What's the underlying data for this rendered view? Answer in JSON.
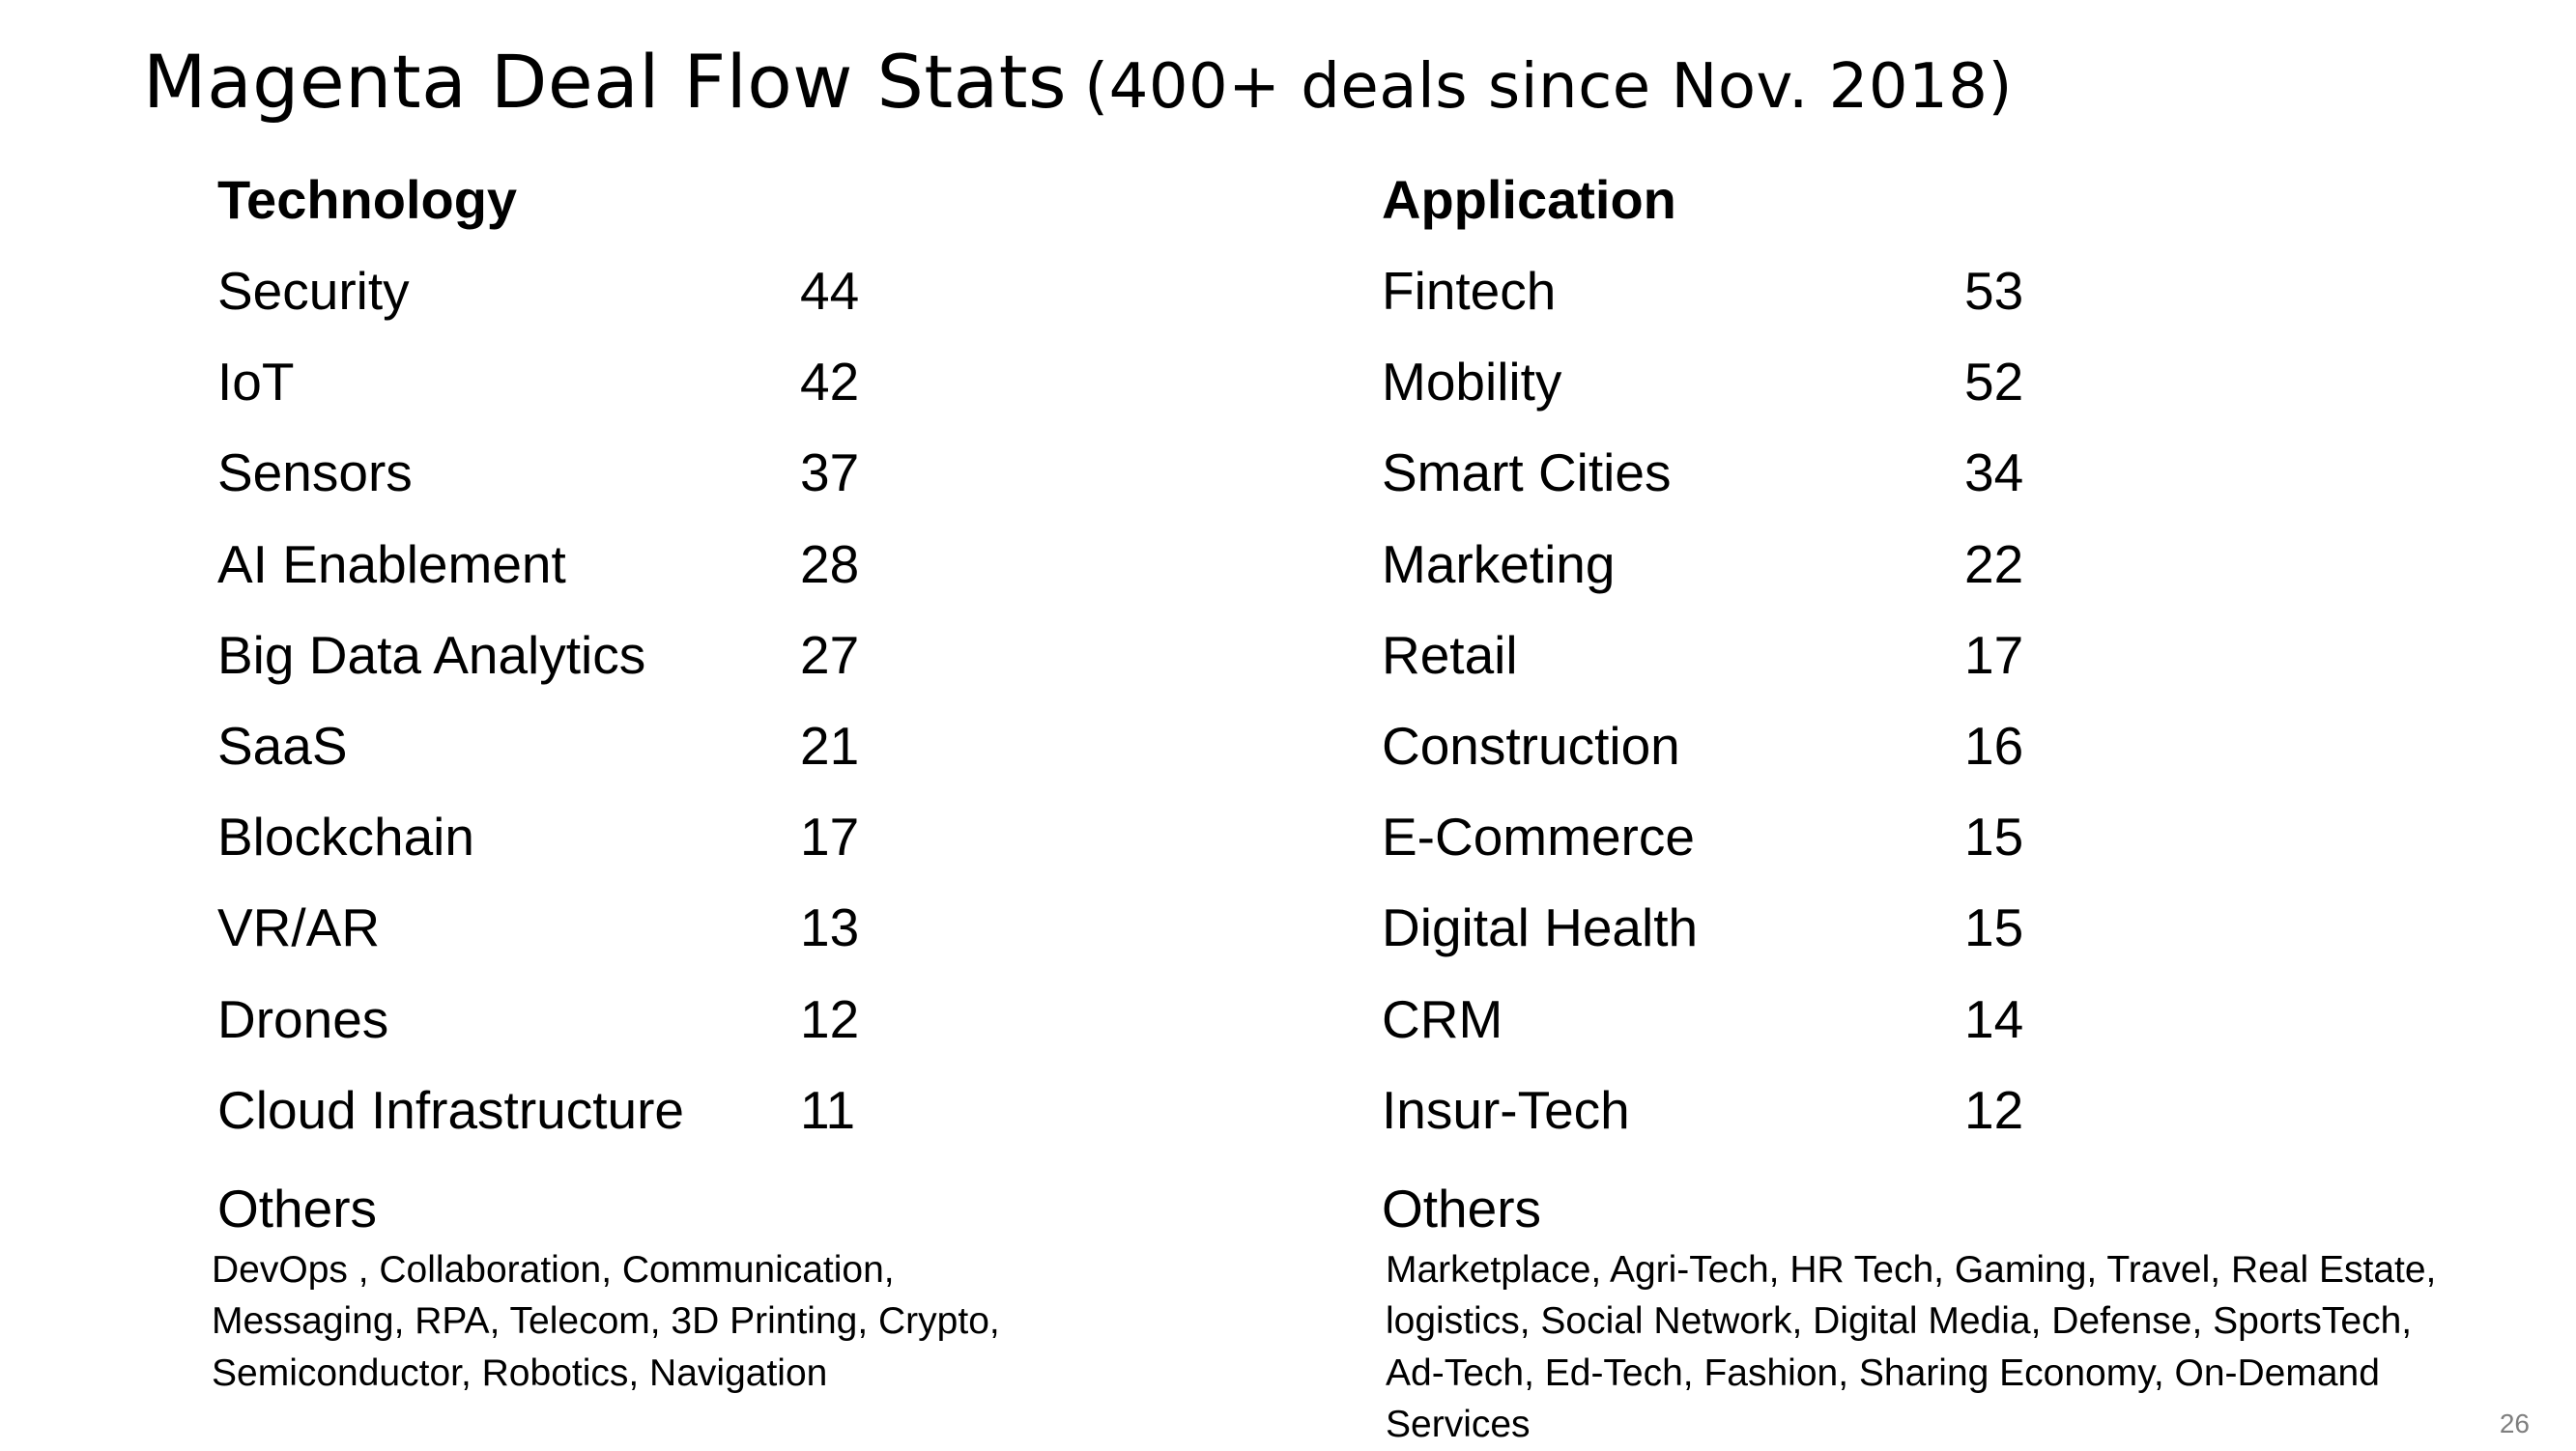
{
  "title": "Magenta Deal Flow Stats",
  "subtitle": "(400+ deals since Nov. 2018)",
  "technology": {
    "heading": "Technology",
    "items": [
      {
        "label": "Security",
        "count": "44"
      },
      {
        "label": "IoT",
        "count": "42"
      },
      {
        "label": "Sensors",
        "count": "37"
      },
      {
        "label": "AI Enablement",
        "count": "28"
      },
      {
        "label": "Big Data Analytics",
        "count": "27"
      },
      {
        "label": "SaaS",
        "count": "21"
      },
      {
        "label": "Blockchain",
        "count": "17"
      },
      {
        "label": "VR/AR",
        "count": "13"
      },
      {
        "label": "Drones",
        "count": "12"
      },
      {
        "label": "Cloud Infrastructure",
        "count": "11"
      }
    ],
    "others_heading": "Others",
    "others_text": "DevOps , Collaboration, Communication, Messaging, RPA, Telecom, 3D Printing, Crypto, Semiconductor, Robotics, Navigation"
  },
  "application": {
    "heading": "Application",
    "items": [
      {
        "label": "Fintech",
        "count": "53"
      },
      {
        "label": "Mobility",
        "count": "52"
      },
      {
        "label": "Smart Cities",
        "count": "34"
      },
      {
        "label": "Marketing",
        "count": "22"
      },
      {
        "label": "Retail",
        "count": "17"
      },
      {
        "label": "Construction",
        "count": "16"
      },
      {
        "label": "E-Commerce",
        "count": "15"
      },
      {
        "label": "Digital Health",
        "count": "15"
      },
      {
        "label": "CRM",
        "count": "14"
      },
      {
        "label": "Insur-Tech",
        "count": "12"
      }
    ],
    "others_heading": "Others",
    "others_text": "Marketplace, Agri-Tech, HR Tech, Gaming, Travel, Real Estate, logistics, Social Network, Digital Media, Defense, SportsTech, Ad-Tech, Ed-Tech, Fashion, Sharing Economy, On-Demand Services"
  },
  "page_number": "26"
}
